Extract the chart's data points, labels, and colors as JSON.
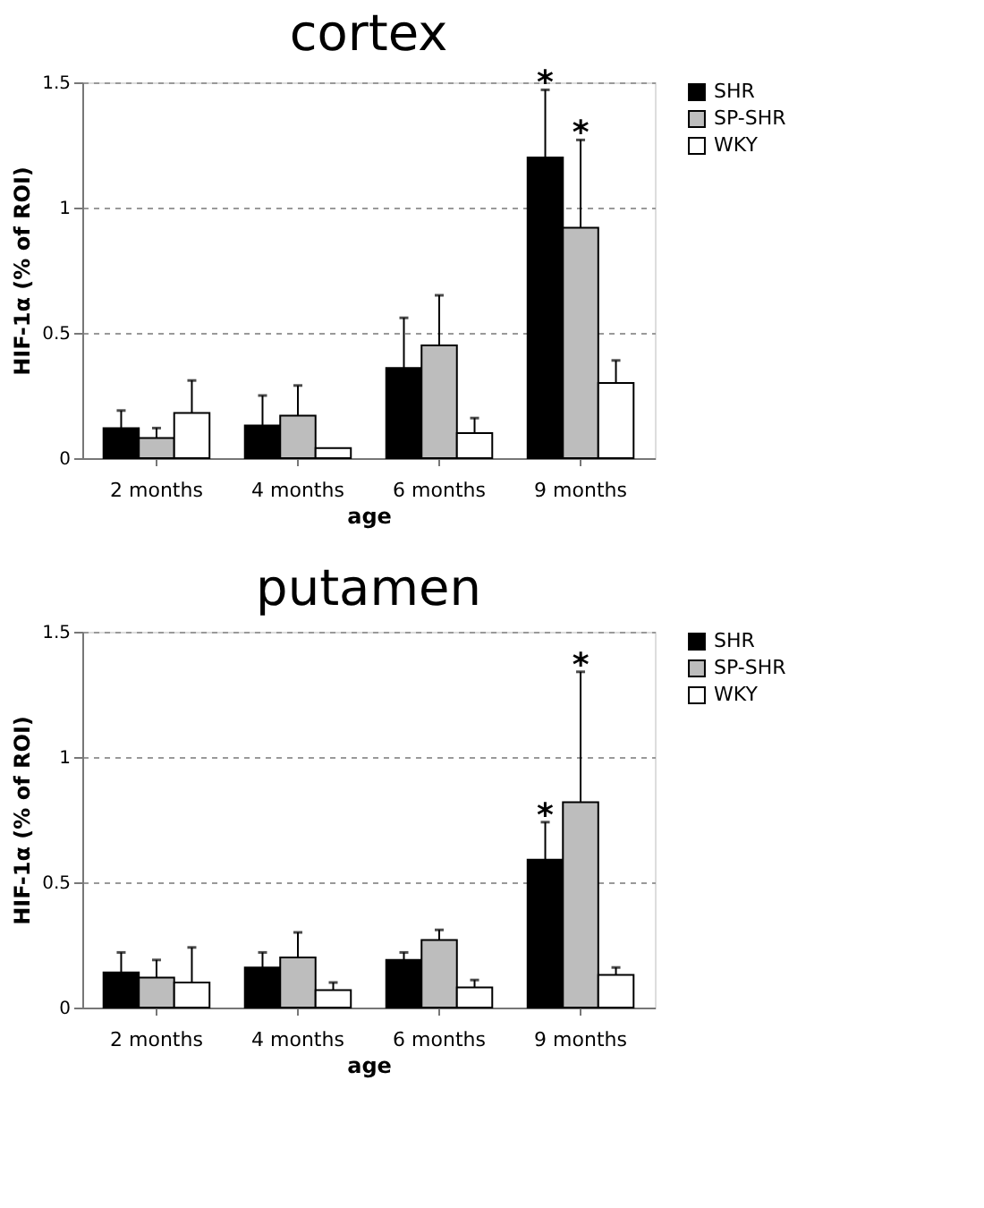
{
  "chart_data": [
    {
      "type": "bar",
      "title": "cortex",
      "xlabel": "age",
      "ylabel": "HIF-1α (% of ROI)",
      "categories": [
        "2 months",
        "4 months",
        "6 months",
        "9 months"
      ],
      "series": [
        {
          "name": "SHR",
          "color": "#000000",
          "values": [
            0.12,
            0.13,
            0.36,
            1.2
          ],
          "errors": [
            [
              0.12,
              0.19
            ],
            [
              0.13,
              0.25
            ],
            [
              0.36,
              0.56
            ],
            [
              1.2,
              1.47
            ]
          ]
        },
        {
          "name": "SP-SHR",
          "color": "#bdbdbd",
          "values": [
            0.08,
            0.17,
            0.45,
            0.92
          ],
          "errors": [
            [
              0.08,
              0.12
            ],
            [
              0.17,
              0.29
            ],
            [
              0.45,
              0.65
            ],
            [
              0.92,
              1.27
            ]
          ]
        },
        {
          "name": "WKY",
          "color": "#ffffff",
          "values": [
            0.18,
            0.04,
            0.1,
            0.3
          ],
          "errors": [
            [
              0.18,
              0.31
            ],
            null,
            [
              0.1,
              0.16
            ],
            [
              0.3,
              0.39
            ]
          ]
        }
      ],
      "ylim": [
        0,
        1.5
      ],
      "yticks": [
        0,
        0.5,
        1,
        1.5
      ],
      "grid": "y",
      "legend": "right",
      "annotations": [
        "*",
        "*"
      ]
    },
    {
      "type": "bar",
      "title": "putamen",
      "xlabel": "age",
      "ylabel": "HIF-1α (% of ROI)",
      "categories": [
        "2 months",
        "4 months",
        "6 months",
        "9 months"
      ],
      "series": [
        {
          "name": "SHR",
          "color": "#000000",
          "values": [
            0.14,
            0.16,
            0.19,
            0.59
          ],
          "errors": [
            [
              0.14,
              0.22
            ],
            [
              0.16,
              0.22
            ],
            [
              0.19,
              0.22
            ],
            [
              0.59,
              0.74
            ]
          ]
        },
        {
          "name": "SP-SHR",
          "color": "#bdbdbd",
          "values": [
            0.12,
            0.2,
            0.27,
            0.82
          ],
          "errors": [
            [
              0.12,
              0.19
            ],
            [
              0.2,
              0.3
            ],
            [
              0.27,
              0.31
            ],
            [
              0.82,
              1.34
            ]
          ]
        },
        {
          "name": "WKY",
          "color": "#ffffff",
          "values": [
            0.1,
            0.07,
            0.08,
            0.13
          ],
          "errors": [
            [
              0.1,
              0.24
            ],
            [
              0.07,
              0.1
            ],
            [
              0.08,
              0.11
            ],
            [
              0.13,
              0.16
            ]
          ]
        }
      ],
      "ylim": [
        0,
        1.5
      ],
      "yticks": [
        0,
        0.5,
        1,
        1.5
      ],
      "grid": "y",
      "legend": "right",
      "annotations": [
        "*",
        "*"
      ]
    }
  ]
}
